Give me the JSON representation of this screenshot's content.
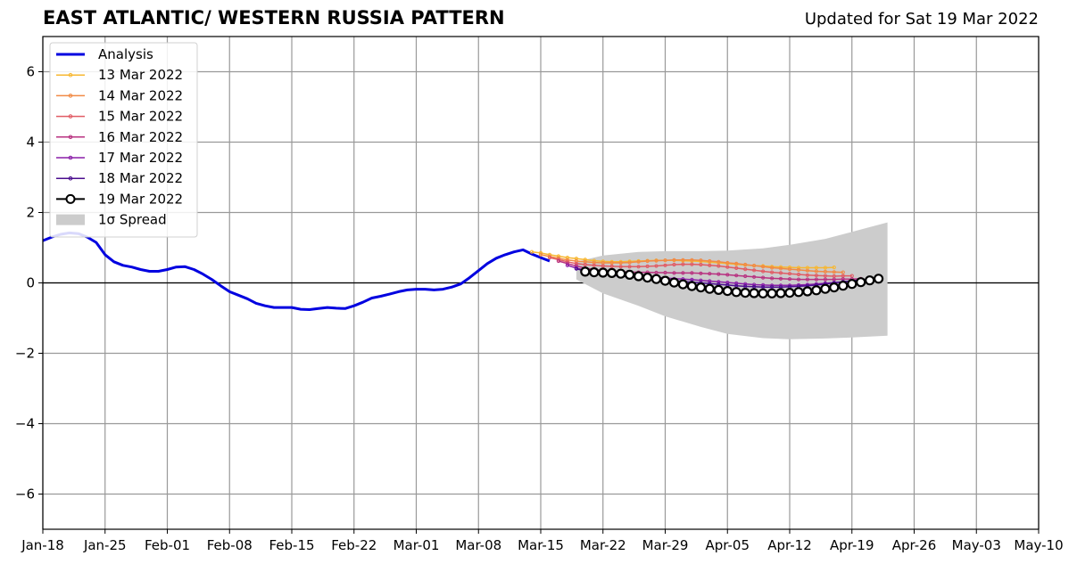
{
  "header": {
    "title": "EAST ATLANTIC/ WESTERN RUSSIA PATTERN",
    "subtitle": "Updated for Sat 19 Mar 2022"
  },
  "chart_data": {
    "type": "line",
    "title": "EAST ATLANTIC/ WESTERN RUSSIA PATTERN",
    "subtitle": "Updated for Sat 19 Mar 2022",
    "xlabel": "",
    "ylabel": "",
    "xlim": [
      "2022-01-18",
      "2022-05-10"
    ],
    "ylim": [
      -7,
      7
    ],
    "x_ticks": [
      "Jan-18",
      "Jan-25",
      "Feb-01",
      "Feb-08",
      "Feb-15",
      "Feb-22",
      "Mar-01",
      "Mar-08",
      "Mar-15",
      "Mar-22",
      "Mar-29",
      "Apr-05",
      "Apr-12",
      "Apr-19",
      "Apr-26",
      "May-03",
      "May-10"
    ],
    "x_tick_dates": [
      "2022-01-18",
      "2022-01-25",
      "2022-02-01",
      "2022-02-08",
      "2022-02-15",
      "2022-02-22",
      "2022-03-01",
      "2022-03-08",
      "2022-03-15",
      "2022-03-22",
      "2022-03-29",
      "2022-04-05",
      "2022-04-12",
      "2022-04-19",
      "2022-04-26",
      "2022-05-03",
      "2022-05-10"
    ],
    "y_ticks": [
      -6,
      -4,
      -2,
      0,
      2,
      4,
      6
    ],
    "y_tick_labels": [
      "−6",
      "−4",
      "−2",
      "0",
      "2",
      "4",
      "6"
    ],
    "grid": true,
    "zero_line": true,
    "legend_position": "top-left",
    "analysis": {
      "name": "Analysis",
      "color": "#0000e0",
      "start_date": "2022-01-18",
      "step_days": 1,
      "values": [
        1.2,
        1.3,
        1.38,
        1.42,
        1.4,
        1.3,
        1.15,
        0.8,
        0.6,
        0.5,
        0.45,
        0.38,
        0.33,
        0.33,
        0.38,
        0.45,
        0.46,
        0.38,
        0.25,
        0.1,
        -0.08,
        -0.25,
        -0.35,
        -0.45,
        -0.58,
        -0.65,
        -0.7,
        -0.7,
        -0.7,
        -0.75,
        -0.76,
        -0.73,
        -0.7,
        -0.72,
        -0.73,
        -0.65,
        -0.55,
        -0.43,
        -0.38,
        -0.32,
        -0.25,
        -0.2,
        -0.18,
        -0.18,
        -0.2,
        -0.18,
        -0.12,
        -0.03,
        0.15,
        0.35,
        0.55,
        0.7,
        0.8,
        0.88,
        0.94,
        0.82,
        0.72,
        0.62
      ]
    },
    "spread": {
      "name": "1σ Spread",
      "color": "#cccccc",
      "dates": [
        "2022-03-19",
        "2022-03-22",
        "2022-03-26",
        "2022-03-29",
        "2022-04-02",
        "2022-04-05",
        "2022-04-09",
        "2022-04-12",
        "2022-04-16",
        "2022-04-19",
        "2022-04-23"
      ],
      "upper": [
        0.6,
        0.78,
        0.88,
        0.9,
        0.9,
        0.92,
        0.98,
        1.08,
        1.25,
        1.45,
        1.72
      ],
      "lower": [
        0.1,
        -0.3,
        -0.65,
        -0.95,
        -1.25,
        -1.45,
        -1.57,
        -1.6,
        -1.58,
        -1.55,
        -1.5
      ]
    },
    "forecasts": [
      {
        "name": "13 Mar 2022",
        "color": "#f7b731",
        "start_date": "2022-03-14",
        "step_days": 1,
        "values": [
          0.88,
          0.85,
          0.8,
          0.76,
          0.72,
          0.69,
          0.66,
          0.63,
          0.61,
          0.6,
          0.6,
          0.61,
          0.62,
          0.63,
          0.64,
          0.64,
          0.64,
          0.63,
          0.62,
          0.61,
          0.59,
          0.57,
          0.55,
          0.53,
          0.51,
          0.49,
          0.48,
          0.46,
          0.45,
          0.44,
          0.43,
          0.43,
          0.43,
          0.43,
          0.44
        ]
      },
      {
        "name": "14 Mar 2022",
        "color": "#f18a45",
        "start_date": "2022-03-15",
        "step_days": 1,
        "values": [
          0.8,
          0.75,
          0.7,
          0.65,
          0.62,
          0.6,
          0.58,
          0.57,
          0.57,
          0.57,
          0.58,
          0.6,
          0.62,
          0.63,
          0.64,
          0.65,
          0.65,
          0.65,
          0.64,
          0.62,
          0.6,
          0.57,
          0.55,
          0.52,
          0.49,
          0.46,
          0.43,
          0.41,
          0.39,
          0.37,
          0.35,
          0.33,
          0.32,
          0.31,
          0.3
        ]
      },
      {
        "name": "15 Mar 2022",
        "color": "#e15b64",
        "start_date": "2022-03-16",
        "step_days": 1,
        "values": [
          0.72,
          0.66,
          0.6,
          0.55,
          0.52,
          0.5,
          0.48,
          0.47,
          0.46,
          0.46,
          0.46,
          0.47,
          0.48,
          0.5,
          0.52,
          0.53,
          0.53,
          0.52,
          0.5,
          0.48,
          0.45,
          0.42,
          0.39,
          0.36,
          0.33,
          0.3,
          0.28,
          0.26,
          0.24,
          0.22,
          0.21,
          0.2,
          0.19,
          0.2,
          0.2
        ]
      },
      {
        "name": "16 Mar 2022",
        "color": "#b83280",
        "start_date": "2022-03-17",
        "step_days": 1,
        "values": [
          0.62,
          0.55,
          0.48,
          0.42,
          0.38,
          0.35,
          0.33,
          0.32,
          0.31,
          0.3,
          0.3,
          0.29,
          0.29,
          0.28,
          0.28,
          0.28,
          0.27,
          0.26,
          0.25,
          0.23,
          0.21,
          0.19,
          0.17,
          0.15,
          0.13,
          0.12,
          0.11,
          0.1,
          0.1,
          0.1,
          0.1,
          0.1,
          0.11,
          0.11,
          0.12
        ]
      },
      {
        "name": "17 Mar 2022",
        "color": "#8a1fa8",
        "start_date": "2022-03-18",
        "step_days": 1,
        "values": [
          0.5,
          0.42,
          0.36,
          0.31,
          0.27,
          0.24,
          0.22,
          0.2,
          0.19,
          0.17,
          0.16,
          0.14,
          0.12,
          0.11,
          0.09,
          0.07,
          0.05,
          0.03,
          0.01,
          -0.01,
          -0.03,
          -0.05,
          -0.06,
          -0.07,
          -0.07,
          -0.07,
          -0.06,
          -0.05,
          -0.03,
          -0.01,
          0.01,
          0.03,
          0.05,
          0.07,
          0.09
        ]
      },
      {
        "name": "18 Mar 2022",
        "color": "#4a0d8e",
        "start_date": "2022-03-19",
        "step_days": 1,
        "values": [
          0.4,
          0.34,
          0.29,
          0.25,
          0.22,
          0.19,
          0.17,
          0.14,
          0.12,
          0.1,
          0.08,
          0.06,
          0.04,
          0.02,
          0.0,
          -0.02,
          -0.04,
          -0.06,
          -0.08,
          -0.1,
          -0.11,
          -0.12,
          -0.12,
          -0.12,
          -0.11,
          -0.1,
          -0.08,
          -0.06,
          -0.03,
          0.0,
          0.03,
          0.06,
          0.09,
          0.11,
          0.13
        ]
      },
      {
        "name": "19 Mar 2022",
        "color": "#000000",
        "marker": "open-circle",
        "start_date": "2022-03-20",
        "step_days": 1,
        "values": [
          0.32,
          0.3,
          0.29,
          0.28,
          0.26,
          0.23,
          0.19,
          0.15,
          0.11,
          0.06,
          0.01,
          -0.04,
          -0.09,
          -0.13,
          -0.17,
          -0.2,
          -0.23,
          -0.26,
          -0.28,
          -0.29,
          -0.3,
          -0.3,
          -0.29,
          -0.28,
          -0.26,
          -0.24,
          -0.21,
          -0.17,
          -0.13,
          -0.08,
          -0.03,
          0.02,
          0.07,
          0.12
        ]
      }
    ],
    "legend": [
      "Analysis",
      "13 Mar 2022",
      "14 Mar 2022",
      "15 Mar 2022",
      "16 Mar 2022",
      "17 Mar 2022",
      "18 Mar 2022",
      "19 Mar 2022",
      "1σ Spread"
    ]
  }
}
